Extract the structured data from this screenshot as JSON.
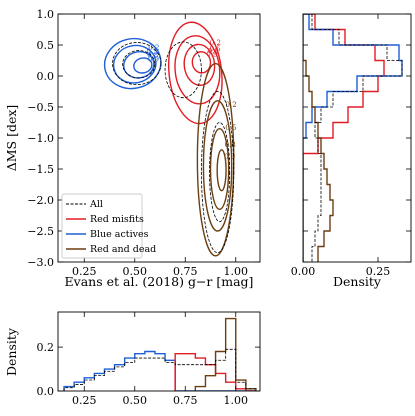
{
  "colors": {
    "all": "#000000",
    "red_misfits": "#e11d24",
    "blue_actives": "#1f5fd6",
    "red_and_dead": "#6b3f10"
  },
  "chart_data": [
    {
      "id": "main",
      "type": "contour",
      "xlabel": "Evans et al. (2018) g−r [mag]",
      "ylabel": "ΔMS [dex]",
      "xlim": [
        0.12,
        1.12
      ],
      "ylim": [
        -3.0,
        1.0
      ],
      "xticks": [
        0.25,
        0.5,
        0.75,
        1.0
      ],
      "xtick_labels": [
        "0.25",
        "0.50",
        "0.75",
        "1.00"
      ],
      "yticks": [
        1.0,
        0.5,
        0.0,
        -0.5,
        -1.0,
        -1.5,
        -2.0,
        -2.5,
        -3.0
      ],
      "ytick_labels": [
        "1.0",
        "0.5",
        "0.0",
        "−0.5",
        "−1.0",
        "−1.5",
        "−2.0",
        "−2.5",
        "−3.0"
      ],
      "legend": {
        "placement": "lower-left",
        "entries": [
          "All",
          "Red misfits",
          "Blue actives",
          "Red and dead"
        ]
      },
      "series": [
        {
          "name": "Blue actives",
          "color_key": "blue_actives",
          "contours": [
            {
              "cx": 0.49,
              "cy": 0.2,
              "sx": 0.14,
              "sy": 0.4,
              "level": "0.2"
            },
            {
              "cx": 0.5,
              "cy": 0.19,
              "sx": 0.105,
              "sy": 0.3,
              "level": "0.5"
            },
            {
              "cx": 0.52,
              "cy": 0.18,
              "sx": 0.075,
              "sy": 0.21,
              "level": "0.8"
            },
            {
              "cx": 0.54,
              "cy": 0.17,
              "sx": 0.045,
              "sy": 0.12,
              "level": "0.9"
            }
          ]
        },
        {
          "name": "Red misfits",
          "color_key": "red_misfits",
          "contours": [
            {
              "cx": 0.8,
              "cy": 0.05,
              "sx": 0.13,
              "sy": 0.82,
              "level": "0.2"
            },
            {
              "cx": 0.81,
              "cy": 0.1,
              "sx": 0.11,
              "sy": 0.55,
              "level": "0.5"
            },
            {
              "cx": 0.82,
              "cy": 0.18,
              "sx": 0.075,
              "sy": 0.33,
              "level": "0.8"
            },
            {
              "cx": 0.83,
              "cy": 0.22,
              "sx": 0.045,
              "sy": 0.17,
              "level": "0.9"
            }
          ]
        },
        {
          "name": "Red and dead",
          "color_key": "red_and_dead",
          "contours": [
            {
              "cx": 0.9,
              "cy": -1.35,
              "sx": 0.09,
              "sy": 1.55,
              "level": "0.2"
            },
            {
              "cx": 0.91,
              "cy": -1.45,
              "sx": 0.07,
              "sy": 1.05,
              "level": "0.5"
            },
            {
              "cx": 0.92,
              "cy": -1.5,
              "sx": 0.045,
              "sy": 0.65,
              "level": "0.8"
            },
            {
              "cx": 0.93,
              "cy": -1.52,
              "sx": 0.022,
              "sy": 0.33,
              "level": "0.9"
            }
          ]
        },
        {
          "name": "All",
          "color_key": "all",
          "dashed": true,
          "contours": [
            {
              "cx": 0.51,
              "cy": 0.2,
              "sx": 0.12,
              "sy": 0.34,
              "level": ""
            },
            {
              "cx": 0.52,
              "cy": 0.19,
              "sx": 0.08,
              "sy": 0.22,
              "level": ""
            },
            {
              "cx": 0.74,
              "cy": 0.1,
              "sx": 0.09,
              "sy": 0.45,
              "level": ""
            },
            {
              "cx": 0.91,
              "cy": -1.55,
              "sx": 0.08,
              "sy": 1.3,
              "level": ""
            },
            {
              "cx": 0.92,
              "cy": -1.55,
              "sx": 0.05,
              "sy": 0.8,
              "level": ""
            }
          ]
        }
      ]
    },
    {
      "id": "right_hist",
      "type": "step_histogram",
      "orientation": "horizontal",
      "xlabel": "Density",
      "xlim": [
        0.0,
        0.36
      ],
      "xticks": [
        0.0,
        0.25
      ],
      "xtick_labels": [
        "0.00",
        "0.25"
      ],
      "ylim": [
        -3.0,
        1.0
      ],
      "bin_edges": [
        1.0,
        0.875,
        0.75,
        0.625,
        0.5,
        0.375,
        0.25,
        0.125,
        0.0,
        -0.125,
        -0.25,
        -0.375,
        -0.5,
        -0.625,
        -0.75,
        -0.875,
        -1.0,
        -1.125,
        -1.25,
        -1.375,
        -1.5,
        -1.625,
        -1.75,
        -1.875,
        -2.0,
        -2.125,
        -2.25,
        -2.375,
        -2.5,
        -2.625,
        -2.75,
        -2.875,
        -3.0
      ],
      "series": [
        {
          "name": "Red misfits",
          "color_key": "red_misfits",
          "values": [
            0.04,
            0.04,
            0.14,
            0.14,
            0.24,
            0.24,
            0.27,
            0.27,
            0.25,
            0.25,
            0.2,
            0.2,
            0.15,
            0.15,
            0.1,
            0.1,
            0.05,
            0.05,
            0.0,
            0.0,
            0.0,
            0.0,
            0.0,
            0.0,
            0.0,
            0.0,
            0.0,
            0.0,
            0.0,
            0.0,
            0.0,
            0.0
          ]
        },
        {
          "name": "Blue actives",
          "color_key": "blue_actives",
          "values": [
            0.02,
            0.02,
            0.1,
            0.1,
            0.32,
            0.32,
            0.33,
            0.33,
            0.18,
            0.18,
            0.08,
            0.08,
            0.03,
            0.03,
            0.01,
            0.01,
            0.0,
            0.0,
            0.0,
            0.0,
            0.0,
            0.0,
            0.0,
            0.0,
            0.0,
            0.0,
            0.0,
            0.0,
            0.0,
            0.0,
            0.0,
            0.0
          ]
        },
        {
          "name": "Red and dead",
          "color_key": "red_and_dead",
          "values": [
            0.0,
            0.0,
            0.0,
            0.0,
            0.0,
            0.0,
            0.01,
            0.01,
            0.02,
            0.02,
            0.03,
            0.03,
            0.04,
            0.04,
            0.05,
            0.05,
            0.06,
            0.06,
            0.07,
            0.07,
            0.08,
            0.08,
            0.09,
            0.09,
            0.1,
            0.1,
            0.09,
            0.09,
            0.07,
            0.07,
            0.05,
            0.05
          ]
        },
        {
          "name": "All",
          "color_key": "all",
          "dashed": true,
          "values": [
            0.03,
            0.03,
            0.12,
            0.12,
            0.28,
            0.28,
            0.33,
            0.33,
            0.2,
            0.2,
            0.1,
            0.1,
            0.06,
            0.06,
            0.04,
            0.04,
            0.05,
            0.05,
            0.06,
            0.06,
            0.06,
            0.06,
            0.06,
            0.06,
            0.06,
            0.06,
            0.05,
            0.05,
            0.04,
            0.04,
            0.03,
            0.03
          ]
        }
      ]
    },
    {
      "id": "bottom_hist",
      "type": "step_histogram",
      "orientation": "vertical",
      "ylabel": "Density",
      "xlim": [
        0.12,
        1.12
      ],
      "ylim": [
        0.0,
        0.36
      ],
      "xticks": [
        0.25,
        0.5,
        0.75,
        1.0
      ],
      "xtick_labels": [
        "0.25",
        "0.50",
        "0.75",
        "1.00"
      ],
      "yticks": [
        0.0,
        0.2
      ],
      "ytick_labels": [
        "0.0",
        "0.2"
      ],
      "bin_edges": [
        0.15,
        0.2,
        0.25,
        0.3,
        0.35,
        0.4,
        0.45,
        0.5,
        0.55,
        0.6,
        0.65,
        0.7,
        0.75,
        0.8,
        0.85,
        0.9,
        0.95,
        1.0,
        1.05,
        1.1
      ],
      "series": [
        {
          "name": "Blue actives",
          "color_key": "blue_actives",
          "values": [
            0.02,
            0.04,
            0.06,
            0.08,
            0.1,
            0.12,
            0.15,
            0.17,
            0.18,
            0.17,
            0.14,
            0.0,
            0.0,
            0.0,
            0.0,
            0.0,
            0.0,
            0.0,
            0.0
          ]
        },
        {
          "name": "Red misfits",
          "color_key": "red_misfits",
          "values": [
            0.0,
            0.0,
            0.0,
            0.0,
            0.0,
            0.0,
            0.0,
            0.0,
            0.0,
            0.0,
            0.0,
            0.17,
            0.17,
            0.15,
            0.12,
            0.08,
            0.04,
            0.01,
            0.0
          ]
        },
        {
          "name": "Red and dead",
          "color_key": "red_and_dead",
          "values": [
            0.0,
            0.0,
            0.0,
            0.0,
            0.0,
            0.0,
            0.0,
            0.0,
            0.0,
            0.0,
            0.0,
            0.0,
            0.0,
            0.02,
            0.07,
            0.18,
            0.33,
            0.05,
            0.01
          ]
        },
        {
          "name": "All",
          "color_key": "all",
          "dashed": true,
          "values": [
            0.015,
            0.03,
            0.05,
            0.07,
            0.09,
            0.11,
            0.13,
            0.15,
            0.15,
            0.15,
            0.13,
            0.12,
            0.12,
            0.12,
            0.12,
            0.14,
            0.19,
            0.04,
            0.01
          ]
        }
      ]
    }
  ]
}
